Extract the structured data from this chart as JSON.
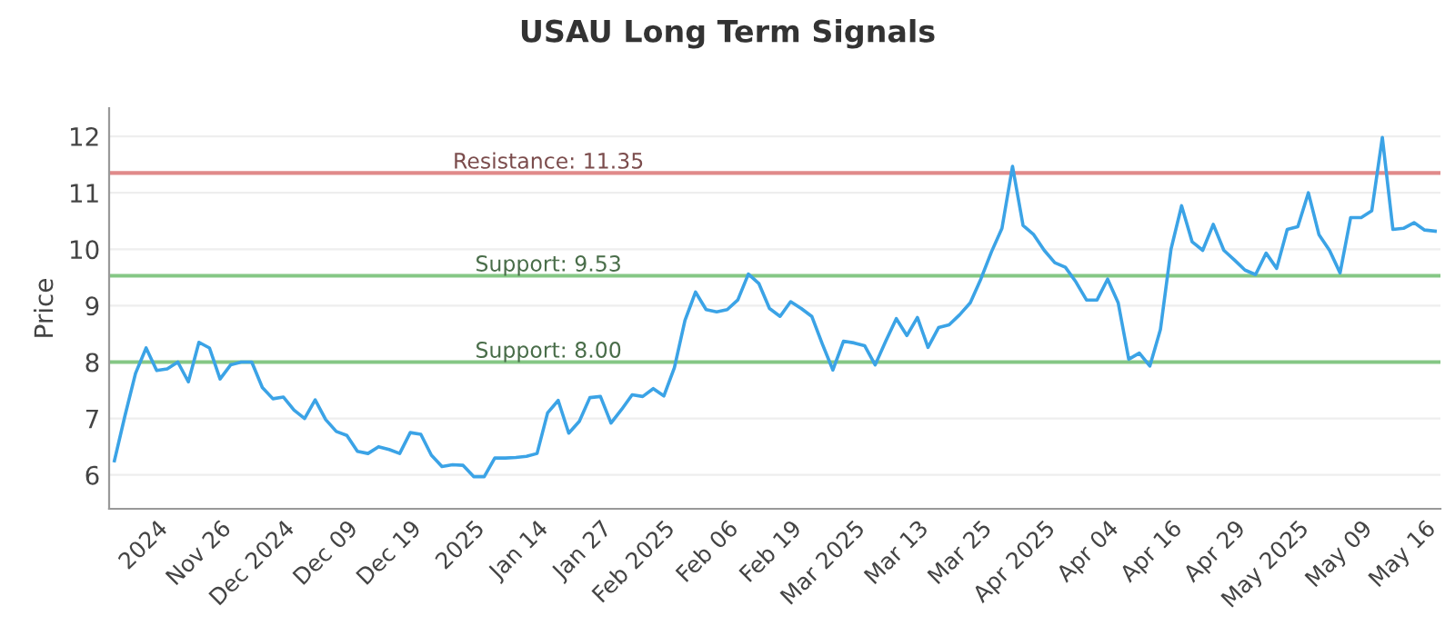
{
  "chart_data": {
    "type": "line",
    "title": "USAU Long Term Signals",
    "ylabel": "Price",
    "categories": [
      null,
      null,
      null,
      null,
      "2024",
      null,
      null,
      null,
      null,
      null,
      "Nov 26",
      null,
      null,
      null,
      null,
      null,
      "Dec 2024",
      null,
      null,
      null,
      null,
      null,
      "Dec 09",
      null,
      null,
      null,
      null,
      null,
      "Dec 19",
      null,
      null,
      null,
      null,
      null,
      "2025",
      null,
      null,
      null,
      null,
      null,
      "Jan 14",
      null,
      null,
      null,
      null,
      null,
      "Jan 27",
      null,
      null,
      null,
      null,
      null,
      "Feb 2025",
      null,
      null,
      null,
      null,
      null,
      "Feb 06",
      null,
      null,
      null,
      null,
      null,
      "Feb 19",
      null,
      null,
      null,
      null,
      null,
      "Mar 2025",
      null,
      null,
      null,
      null,
      null,
      "Mar 13",
      null,
      null,
      null,
      null,
      null,
      "Mar 25",
      null,
      null,
      null,
      null,
      null,
      "Apr 2025",
      null,
      null,
      null,
      null,
      null,
      "Apr 04",
      null,
      null,
      null,
      null,
      null,
      "Apr 16",
      null,
      null,
      null,
      null,
      null,
      "Apr 29",
      null,
      null,
      null,
      null,
      null,
      "May 2025",
      null,
      null,
      null,
      null,
      null,
      "May 09",
      null,
      null,
      null,
      null,
      null,
      "May 16",
      null
    ],
    "series": [
      {
        "color": "#3ba3e6",
        "values": [
          6.25,
          7.05,
          7.8,
          8.25,
          7.85,
          7.88,
          8.0,
          7.65,
          8.35,
          8.25,
          7.7,
          7.95,
          8.0,
          8.0,
          7.55,
          7.35,
          7.38,
          7.15,
          7.0,
          7.33,
          6.98,
          6.77,
          6.7,
          6.42,
          6.38,
          6.5,
          6.45,
          6.38,
          6.75,
          6.72,
          6.35,
          6.15,
          6.18,
          6.17,
          5.97,
          5.97,
          6.3,
          6.3,
          6.31,
          6.33,
          6.38,
          7.1,
          7.32,
          6.74,
          6.95,
          7.37,
          7.39,
          6.92,
          7.16,
          7.42,
          7.39,
          7.53,
          7.4,
          7.9,
          8.74,
          9.24,
          8.93,
          8.89,
          8.93,
          9.1,
          9.56,
          9.39,
          8.95,
          8.81,
          9.07,
          8.95,
          8.81,
          8.32,
          7.86,
          8.37,
          8.34,
          8.29,
          7.95,
          8.37,
          8.77,
          8.47,
          8.79,
          8.26,
          8.61,
          8.66,
          8.84,
          9.05,
          9.47,
          9.95,
          10.37,
          11.47,
          10.42,
          10.26,
          9.98,
          9.76,
          9.68,
          9.42,
          9.1,
          9.1,
          9.47,
          9.05,
          8.05,
          8.16,
          7.93,
          8.58,
          10.0,
          10.77,
          10.13,
          9.98,
          10.44,
          9.98,
          9.81,
          9.63,
          9.55,
          9.93,
          9.66,
          10.35,
          10.4,
          11.0,
          10.26,
          9.98,
          9.58,
          10.56,
          10.56,
          10.68,
          11.98,
          10.35,
          10.37,
          10.47,
          10.34,
          10.32
        ]
      }
    ],
    "ylim": [
      5.4,
      12.5
    ],
    "yticks": [
      6,
      7,
      8,
      9,
      10,
      11,
      12
    ],
    "ref_lines": [
      {
        "axis": "y",
        "value": 11.35,
        "label": "Resistance: 11.35",
        "color": "#e08a8a"
      },
      {
        "axis": "y",
        "value": 9.53,
        "label": "Support: 9.53",
        "color": "#85c785"
      },
      {
        "axis": "y",
        "value": 8.0,
        "label": "Support: 8.00",
        "color": "#85c785"
      }
    ],
    "grid": "y",
    "legend": false,
    "marker": "none",
    "line_style": "solid"
  }
}
